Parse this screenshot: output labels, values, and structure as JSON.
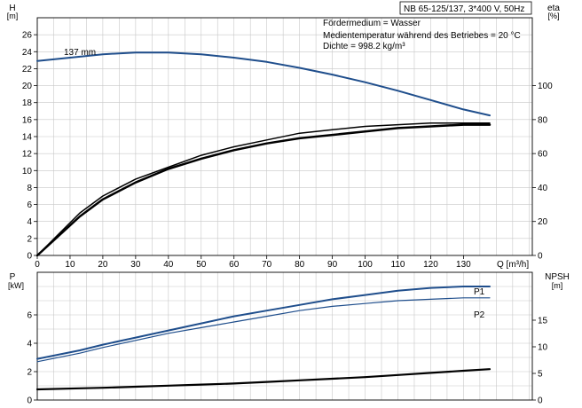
{
  "chart_data": [
    {
      "type": "line",
      "name": "head-efficiency",
      "title": "NB 65-125/137, 3*400 V, 50Hz",
      "notes": [
        "Fördermedium = Wasser",
        "Medientemperatur während des Betriebes = 20 °C",
        "Dichte = 998.2 kg/m³"
      ],
      "xlabel": "Q [m³/h]",
      "x_ticks": [
        0,
        10,
        20,
        30,
        40,
        50,
        60,
        70,
        80,
        90,
        100,
        110,
        120,
        130
      ],
      "xlim": [
        0,
        151
      ],
      "ylabel_left": "H",
      "yunit_left": "[m]",
      "ylim_left": [
        0,
        28
      ],
      "y_ticks_left": [
        0,
        2,
        4,
        6,
        8,
        10,
        12,
        14,
        16,
        18,
        20,
        22,
        24,
        26
      ],
      "ylabel_right": "eta",
      "yunit_right": "[%]",
      "ylim_right": [
        0,
        140
      ],
      "y_ticks_right": [
        0,
        20,
        40,
        60,
        80,
        100
      ],
      "grid": true,
      "series": [
        {
          "name": "137 mm",
          "axis": "left",
          "color": "#1f4e8c",
          "x": [
            0,
            10,
            20,
            30,
            40,
            50,
            60,
            70,
            80,
            90,
            100,
            110,
            120,
            130,
            138
          ],
          "y": [
            22.9,
            23.3,
            23.7,
            23.9,
            23.9,
            23.7,
            23.3,
            22.8,
            22.1,
            21.3,
            20.4,
            19.4,
            18.3,
            17.2,
            16.5
          ]
        },
        {
          "axis": "right",
          "color": "#000000",
          "x": [
            0,
            13,
            20,
            30,
            40,
            50,
            60,
            70,
            80,
            90,
            100,
            110,
            120,
            130,
            138
          ],
          "y": [
            0,
            25,
            35,
            45,
            52,
            59,
            64,
            68,
            72,
            74,
            76,
            77,
            78,
            78,
            78
          ]
        },
        {
          "axis": "right",
          "color": "#000000",
          "x": [
            0,
            13,
            20,
            30,
            40,
            50,
            60,
            70,
            80,
            90,
            100,
            110,
            120,
            130,
            138
          ],
          "y": [
            0,
            23,
            33,
            43,
            51,
            57,
            62,
            66,
            69,
            71,
            73,
            75,
            76,
            77,
            77
          ]
        }
      ]
    },
    {
      "type": "line",
      "name": "power-npsh",
      "ylabel_left": "P",
      "yunit_left": "[kW]",
      "ylim_left": [
        0,
        9
      ],
      "y_ticks_left": [
        0,
        2,
        4,
        6
      ],
      "ylabel_right": "NPSH",
      "yunit_right": "[m]",
      "ylim_right": [
        0,
        24
      ],
      "y_ticks_right": [
        0,
        5,
        10,
        15
      ],
      "xlim": [
        0,
        151
      ],
      "grid": true,
      "series": [
        {
          "name": "P1",
          "axis": "left",
          "color": "#1f4e8c",
          "x": [
            0,
            13,
            20,
            30,
            40,
            50,
            60,
            70,
            80,
            90,
            100,
            110,
            120,
            130,
            138
          ],
          "y": [
            2.9,
            3.5,
            3.9,
            4.4,
            4.9,
            5.4,
            5.9,
            6.3,
            6.7,
            7.1,
            7.4,
            7.7,
            7.9,
            8.0,
            8.0
          ]
        },
        {
          "name": "P2",
          "axis": "left",
          "color": "#1f4e8c",
          "x": [
            0,
            13,
            20,
            30,
            40,
            50,
            60,
            70,
            80,
            90,
            100,
            110,
            120,
            130,
            138
          ],
          "y": [
            2.7,
            3.3,
            3.7,
            4.2,
            4.7,
            5.1,
            5.5,
            5.9,
            6.3,
            6.6,
            6.8,
            7.0,
            7.1,
            7.2,
            7.2
          ]
        },
        {
          "axis": "right",
          "color": "#000000",
          "x": [
            0,
            13,
            20,
            30,
            40,
            50,
            60,
            70,
            80,
            90,
            100,
            110,
            120,
            130,
            138
          ],
          "y": [
            2.0,
            2.2,
            2.3,
            2.5,
            2.7,
            2.9,
            3.1,
            3.4,
            3.7,
            4.0,
            4.3,
            4.7,
            5.1,
            5.5,
            5.8
          ]
        }
      ]
    }
  ]
}
